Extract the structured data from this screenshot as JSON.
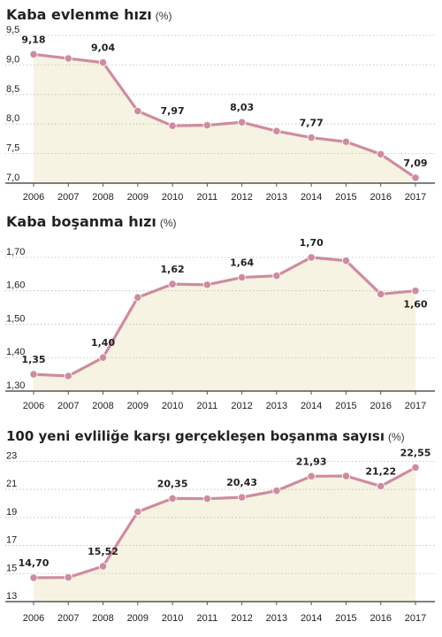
{
  "colors": {
    "line": "#cf8c9e",
    "fill": "#f7f3e3",
    "grid": "#b9b9b9",
    "axis": "#555555",
    "text": "#222222"
  },
  "chart_data": [
    {
      "type": "area",
      "title": "Kaba evlenme hızı",
      "unit": "(%)",
      "categories": [
        "2006",
        "2007",
        "2008",
        "2009",
        "2010",
        "2011",
        "2012",
        "2013",
        "2014",
        "2015",
        "2016",
        "2017"
      ],
      "values": [
        9.18,
        9.11,
        9.04,
        8.22,
        7.97,
        7.98,
        8.03,
        7.88,
        7.77,
        7.7,
        7.49,
        7.09
      ],
      "data_labels": [
        "9,18",
        "",
        "9,04",
        "",
        "7,97",
        "",
        "8,03",
        "",
        "7,77",
        "",
        "",
        "7,09"
      ],
      "yticks": [
        "9,5",
        "9,0",
        "8,5",
        "8,0",
        "7,5",
        "7,0"
      ],
      "ytick_values": [
        9.5,
        9.0,
        8.5,
        8.0,
        7.5,
        7.0
      ],
      "ylim": [
        7.0,
        9.5
      ],
      "grid": true
    },
    {
      "type": "area",
      "title": "Kaba boşanma hızı",
      "unit": "(%)",
      "categories": [
        "2006",
        "2007",
        "2008",
        "2009",
        "2010",
        "2011",
        "2012",
        "2013",
        "2014",
        "2015",
        "2016",
        "2017"
      ],
      "values": [
        1.35,
        1.345,
        1.4,
        1.58,
        1.62,
        1.618,
        1.64,
        1.645,
        1.7,
        1.69,
        1.59,
        1.6
      ],
      "data_labels": [
        "1,35",
        "",
        "1,40",
        "",
        "1,62",
        "",
        "1,64",
        "",
        "1,70",
        "",
        "",
        "1,60"
      ],
      "yticks": [
        "1,70",
        "1,60",
        "1,50",
        "1,40",
        "1,30"
      ],
      "ytick_values": [
        1.7,
        1.6,
        1.5,
        1.4,
        1.3
      ],
      "ylim": [
        1.3,
        1.75
      ],
      "grid": true
    },
    {
      "type": "area",
      "title": "100 yeni evliliğe karşı gerçekleşen boşanma sayısı",
      "unit": "(%)",
      "categories": [
        "2006",
        "2007",
        "2008",
        "2009",
        "2010",
        "2011",
        "2012",
        "2013",
        "2014",
        "2015",
        "2016",
        "2017"
      ],
      "values": [
        14.7,
        14.72,
        15.52,
        19.4,
        20.35,
        20.33,
        20.43,
        20.9,
        21.93,
        21.95,
        21.22,
        22.55
      ],
      "data_labels": [
        "14,70",
        "",
        "15,52",
        "",
        "20,35",
        "",
        "20,43",
        "",
        "21,93",
        "",
        "21,22",
        "22,55"
      ],
      "yticks": [
        "23",
        "21",
        "19",
        "17",
        "15",
        "13"
      ],
      "ytick_values": [
        23,
        21,
        19,
        17,
        15,
        13
      ],
      "ylim": [
        13,
        23.4
      ],
      "grid": true
    }
  ]
}
